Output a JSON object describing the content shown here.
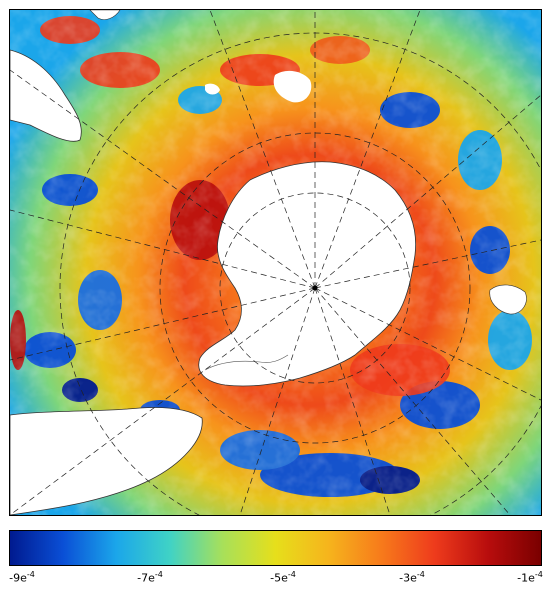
{
  "map": {
    "projection": "south-polar-stereographic",
    "continent": "Antarctica",
    "graticule": "dashed"
  },
  "colorbar": {
    "colors": [
      "#001a8f",
      "#0a4fd6",
      "#1ba6ea",
      "#3fd2c6",
      "#a7e05a",
      "#e6df1b",
      "#f6b41c",
      "#f77a1b",
      "#ee3b1c",
      "#b80d0d",
      "#7a0000"
    ],
    "ticks": [
      {
        "base": "-9e",
        "exp": "-4"
      },
      {
        "base": "-7e",
        "exp": "-4"
      },
      {
        "base": "-5e",
        "exp": "-4"
      },
      {
        "base": "-3e",
        "exp": "-4"
      },
      {
        "base": "-1e",
        "exp": "-4"
      }
    ]
  }
}
